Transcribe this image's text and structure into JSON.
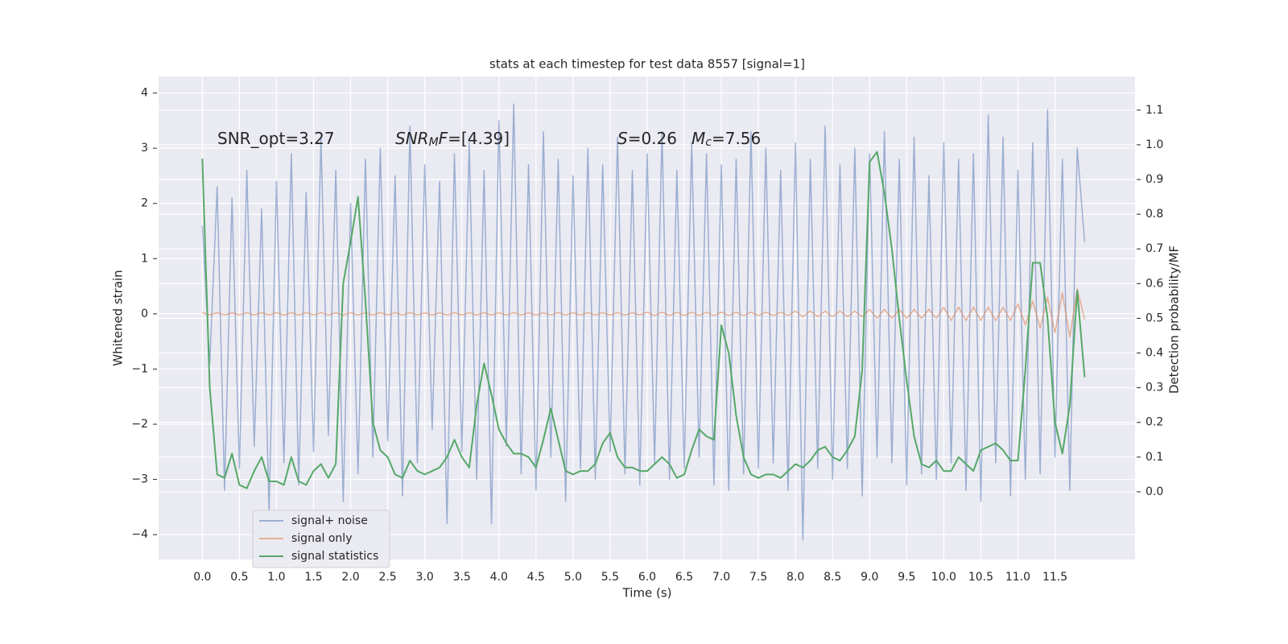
{
  "chart_data": {
    "type": "line",
    "title": "stats at each timestep for test data 8557 [signal=1]",
    "xlabel": "Time (s)",
    "ylabel": "Whitened strain",
    "y2label": "Detection probability/MF",
    "annotations": [
      {
        "parts": [
          {
            "text": "SNR_opt=3.27",
            "style": "normal"
          }
        ]
      },
      {
        "parts": [
          {
            "text": "SNR",
            "style": "italic"
          },
          {
            "text": "M",
            "style": "italic-sub"
          },
          {
            "text": "F",
            "style": "italic"
          },
          {
            "text": "=[4.39]",
            "style": "normal"
          }
        ]
      },
      {
        "parts": [
          {
            "text": "S",
            "style": "italic"
          },
          {
            "text": "=0.26",
            "style": "normal"
          }
        ]
      },
      {
        "parts": [
          {
            "text": "M",
            "style": "italic"
          },
          {
            "text": "c",
            "style": "italic-sub"
          },
          {
            "text": "=7.56",
            "style": "normal"
          }
        ]
      }
    ],
    "x": [
      0,
      0.1,
      0.2,
      0.3,
      0.4,
      0.5,
      0.6,
      0.7,
      0.8,
      0.9,
      1,
      1.1,
      1.2,
      1.3,
      1.4,
      1.5,
      1.6,
      1.7,
      1.8,
      1.9,
      2,
      2.1,
      2.2,
      2.3,
      2.4,
      2.5,
      2.6,
      2.7,
      2.8,
      2.9,
      3,
      3.1,
      3.2,
      3.3,
      3.4,
      3.5,
      3.6,
      3.7,
      3.8,
      3.9,
      4,
      4.1,
      4.2,
      4.3,
      4.4,
      4.5,
      4.6,
      4.7,
      4.8,
      4.9,
      5,
      5.1,
      5.2,
      5.3,
      5.4,
      5.5,
      5.6,
      5.7,
      5.8,
      5.9,
      6,
      6.1,
      6.2,
      6.3,
      6.4,
      6.5,
      6.6,
      6.7,
      6.8,
      6.9,
      7,
      7.1,
      7.2,
      7.3,
      7.4,
      7.5,
      7.6,
      7.7,
      7.8,
      7.9,
      8,
      8.1,
      8.2,
      8.3,
      8.4,
      8.5,
      8.6,
      8.7,
      8.8,
      8.9,
      9,
      9.1,
      9.2,
      9.3,
      9.4,
      9.5,
      9.6,
      9.7,
      9.8,
      9.9,
      10,
      10.1,
      10.2,
      10.3,
      10.4,
      10.5,
      10.6,
      10.7,
      10.8,
      10.9,
      11,
      11.1,
      11.2,
      11.3,
      11.4,
      11.5,
      11.6,
      11.7,
      11.8,
      11.9
    ],
    "series": [
      {
        "name": "signal+ noise",
        "color": "#4c72b0",
        "opacity": 0.5,
        "axis": "y",
        "values": [
          1.6,
          -0.9,
          2.3,
          -3.2,
          2.1,
          -2.8,
          2.6,
          -2.4,
          1.9,
          -3.6,
          2.4,
          -2.7,
          2.9,
          -3.1,
          2.2,
          -2.5,
          3.2,
          -2.2,
          2.6,
          -3.4,
          2.0,
          -2.9,
          2.8,
          -2.6,
          3.0,
          -2.3,
          2.5,
          -3.3,
          3.4,
          -2.7,
          2.7,
          -2.1,
          2.4,
          -3.8,
          2.9,
          -2.5,
          3.1,
          -3.0,
          2.6,
          -3.8,
          3.5,
          -2.4,
          3.8,
          -2.9,
          2.7,
          -3.2,
          3.3,
          -2.6,
          2.8,
          -3.4,
          2.5,
          -2.8,
          3.0,
          -3.0,
          2.7,
          -2.5,
          3.2,
          -2.9,
          2.6,
          -3.1,
          2.9,
          -2.7,
          3.3,
          -3.0,
          2.6,
          -2.8,
          3.1,
          -2.6,
          2.9,
          -3.1,
          2.7,
          -3.2,
          2.8,
          -2.9,
          3.3,
          -2.8,
          3.0,
          -2.7,
          2.6,
          -3.2,
          3.1,
          -4.1,
          2.8,
          -2.8,
          3.4,
          -3.0,
          2.7,
          -2.8,
          3.0,
          -3.3,
          2.9,
          -2.6,
          3.3,
          -2.7,
          2.8,
          -3.1,
          3.2,
          -2.9,
          2.5,
          -3.0,
          3.1,
          -2.7,
          2.8,
          -3.2,
          2.9,
          -3.4,
          3.6,
          -2.7,
          3.2,
          -3.3,
          2.6,
          -3.0,
          3.1,
          -2.9,
          3.7,
          -2.6,
          2.8,
          -3.2,
          3.0,
          1.3
        ]
      },
      {
        "name": "signal only",
        "color": "#dd8452",
        "opacity": 0.6,
        "axis": "y",
        "values": [
          0.02,
          -0.02,
          0.02,
          -0.02,
          0.02,
          -0.02,
          0.02,
          -0.02,
          0.02,
          -0.02,
          0.02,
          -0.02,
          0.02,
          -0.02,
          0.02,
          -0.02,
          0.02,
          -0.02,
          0.02,
          -0.02,
          0.02,
          -0.02,
          0.02,
          -0.02,
          0.02,
          -0.02,
          0.02,
          -0.02,
          0.02,
          -0.02,
          0.02,
          -0.02,
          0.02,
          -0.02,
          0.02,
          -0.02,
          0.02,
          -0.02,
          0.02,
          -0.02,
          0.02,
          -0.02,
          0.02,
          -0.02,
          0.02,
          -0.02,
          0.02,
          -0.02,
          0.02,
          -0.02,
          0.02,
          -0.02,
          0.02,
          -0.02,
          0.02,
          -0.02,
          0.02,
          -0.02,
          0.02,
          -0.02,
          0.03,
          -0.03,
          0.03,
          -0.03,
          0.03,
          -0.03,
          0.03,
          -0.03,
          0.03,
          -0.03,
          0.03,
          -0.03,
          0.03,
          -0.03,
          0.03,
          -0.03,
          0.03,
          -0.03,
          0.03,
          -0.03,
          0.05,
          -0.05,
          0.05,
          -0.05,
          0.05,
          -0.05,
          0.05,
          -0.05,
          0.05,
          -0.05,
          0.08,
          -0.08,
          0.08,
          -0.08,
          0.08,
          -0.08,
          0.08,
          -0.08,
          0.08,
          -0.08,
          0.12,
          -0.12,
          0.12,
          -0.12,
          0.12,
          -0.12,
          0.12,
          -0.12,
          0.12,
          -0.12,
          0.18,
          -0.2,
          0.23,
          -0.26,
          0.3,
          -0.34,
          0.38,
          -0.42,
          0.45,
          -0.1
        ]
      },
      {
        "name": "signal statistics",
        "color": "#55a868",
        "opacity": 1,
        "axis": "y2",
        "values": [
          0.96,
          0.3,
          0.05,
          0.04,
          0.11,
          0.02,
          0.01,
          0.06,
          0.1,
          0.03,
          0.03,
          0.02,
          0.1,
          0.03,
          0.02,
          0.06,
          0.08,
          0.04,
          0.08,
          0.6,
          0.72,
          0.85,
          0.55,
          0.2,
          0.12,
          0.1,
          0.05,
          0.04,
          0.09,
          0.06,
          0.05,
          0.06,
          0.07,
          0.1,
          0.15,
          0.1,
          0.07,
          0.25,
          0.37,
          0.28,
          0.18,
          0.14,
          0.11,
          0.11,
          0.1,
          0.07,
          0.15,
          0.24,
          0.15,
          0.06,
          0.05,
          0.06,
          0.06,
          0.08,
          0.14,
          0.17,
          0.1,
          0.07,
          0.07,
          0.06,
          0.06,
          0.08,
          0.1,
          0.08,
          0.04,
          0.05,
          0.12,
          0.18,
          0.16,
          0.15,
          0.48,
          0.4,
          0.22,
          0.1,
          0.05,
          0.04,
          0.05,
          0.05,
          0.04,
          0.06,
          0.08,
          0.07,
          0.09,
          0.12,
          0.13,
          0.1,
          0.09,
          0.12,
          0.16,
          0.35,
          0.95,
          0.98,
          0.86,
          0.7,
          0.5,
          0.32,
          0.16,
          0.08,
          0.07,
          0.09,
          0.06,
          0.06,
          0.1,
          0.08,
          0.06,
          0.12,
          0.13,
          0.14,
          0.12,
          0.09,
          0.09,
          0.35,
          0.66,
          0.66,
          0.5,
          0.2,
          0.11,
          0.25,
          0.58,
          0.33
        ]
      }
    ],
    "xlim": [
      -0.59,
      12.58
    ],
    "ylim": [
      -4.45,
      4.3
    ],
    "y2lim": [
      -0.195,
      1.197
    ],
    "xticks": [
      {
        "value": 0,
        "label": "0.0"
      },
      {
        "value": 0.5,
        "label": "0.5"
      },
      {
        "value": 1,
        "label": "1.0"
      },
      {
        "value": 1.5,
        "label": "1.5"
      },
      {
        "value": 2,
        "label": "2.0"
      },
      {
        "value": 2.5,
        "label": "2.5"
      },
      {
        "value": 3,
        "label": "3.0"
      },
      {
        "value": 3.5,
        "label": "3.5"
      },
      {
        "value": 4,
        "label": "4.0"
      },
      {
        "value": 4.5,
        "label": "4.5"
      },
      {
        "value": 5,
        "label": "5.0"
      },
      {
        "value": 5.5,
        "label": "5.5"
      },
      {
        "value": 6,
        "label": "6.0"
      },
      {
        "value": 6.5,
        "label": "6.5"
      },
      {
        "value": 7,
        "label": "7.0"
      },
      {
        "value": 7.5,
        "label": "7.5"
      },
      {
        "value": 8,
        "label": "8.0"
      },
      {
        "value": 8.5,
        "label": "8.5"
      },
      {
        "value": 9,
        "label": "9.0"
      },
      {
        "value": 9.5,
        "label": "9.5"
      },
      {
        "value": 10,
        "label": "10.0"
      },
      {
        "value": 10.5,
        "label": "10.5"
      },
      {
        "value": 11,
        "label": "11.0"
      },
      {
        "value": 11.5,
        "label": "11.5"
      }
    ],
    "yticks": [
      {
        "value": -4,
        "label": "−4"
      },
      {
        "value": -3,
        "label": "−3"
      },
      {
        "value": -2,
        "label": "−2"
      },
      {
        "value": -1,
        "label": "−1"
      },
      0,
      1,
      2,
      3,
      4
    ],
    "y2ticks": [
      {
        "value": 0,
        "label": "0.0"
      },
      0.1,
      0.2,
      0.3,
      0.4,
      0.5,
      0.6,
      0.7,
      0.8,
      0.9,
      {
        "value": 1,
        "label": "1.0"
      },
      1.1
    ],
    "grid": true,
    "legend": "lower left"
  }
}
